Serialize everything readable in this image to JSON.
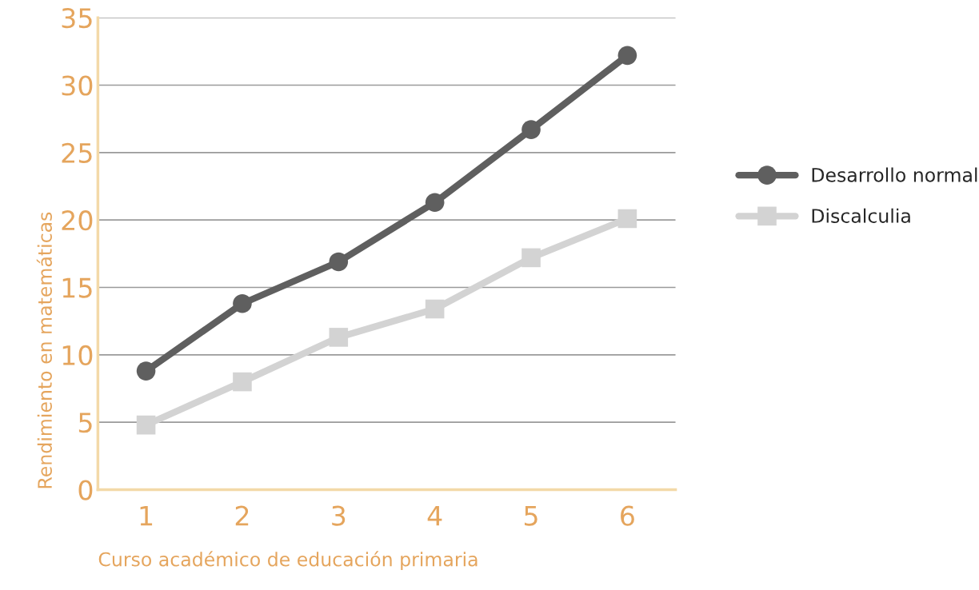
{
  "chart_data": {
    "type": "line",
    "xlabel": "Curso académico de educación primaria",
    "ylabel": "Rendimiento en matemáticas",
    "categories": [
      "1",
      "2",
      "3",
      "4",
      "5",
      "6"
    ],
    "series": [
      {
        "name": "Desarrollo normal",
        "color": "#5f5f5f",
        "marker": "circle",
        "values": [
          8.8,
          13.8,
          16.9,
          21.3,
          26.7,
          32.2
        ]
      },
      {
        "name": "Discalculia",
        "color": "#d3d3d3",
        "marker": "square",
        "values": [
          4.8,
          8.0,
          11.3,
          13.4,
          17.2,
          20.1
        ]
      }
    ],
    "ylim": [
      0,
      35
    ],
    "yticks": [
      0,
      5,
      10,
      15,
      20,
      25,
      30,
      35
    ],
    "grid": "y",
    "legend": "right"
  }
}
